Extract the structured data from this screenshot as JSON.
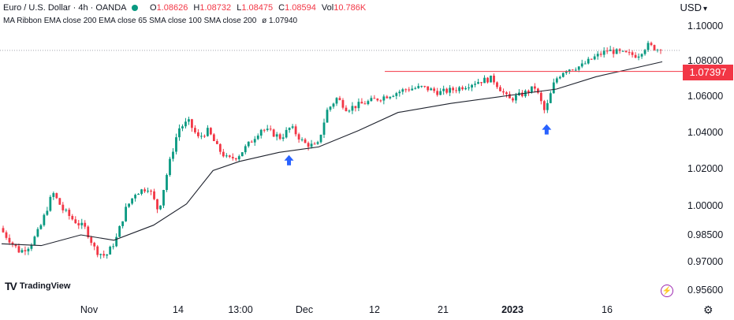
{
  "header": {
    "title": "Euro / U.S. Dollar · 4h · OANDA",
    "ohlc": {
      "O": "1.08626",
      "H": "1.08732",
      "L": "1.08475",
      "C": "1.08594",
      "Vol": "10.786K"
    },
    "indicator_label": "MA Ribbon EMA close 200 EMA close 65 SMA close 100 SMA close 200",
    "indicator_value": "1.07940",
    "currency": "USD"
  },
  "colors": {
    "up": "#089981",
    "down": "#f23645",
    "ma": "#1e222d",
    "resistance": "#f23645",
    "arrow": "#2962ff"
  },
  "chart_data": {
    "type": "candlestick",
    "y_axis": {
      "ticks": [
        1.1,
        1.08,
        1.06,
        1.04,
        1.02,
        1.0,
        0.985,
        0.97,
        0.956
      ],
      "tick_labels": [
        "1.10000",
        "1.08000",
        "1.06000",
        "1.04000",
        "1.02000",
        "1.00000",
        "0.98500",
        "0.97000",
        "0.95600"
      ],
      "range": [
        0.9545,
        1.1015
      ]
    },
    "x_axis": {
      "tick_labels": [
        "Nov",
        "14",
        "13:00",
        "Dec",
        "12",
        "21",
        "2023",
        "16"
      ],
      "tick_positions": [
        0.045,
        0.1,
        0.2,
        0.33,
        0.42,
        0.51,
        0.635,
        0.82
      ]
    },
    "price_path": [
      [
        0.0,
        0.9885
      ],
      [
        0.01,
        0.984
      ],
      [
        0.03,
        0.9755
      ],
      [
        0.045,
        0.979
      ],
      [
        0.06,
        0.988
      ],
      [
        0.08,
        1.007
      ],
      [
        0.095,
        0.998
      ],
      [
        0.11,
        0.993
      ],
      [
        0.13,
        0.988
      ],
      [
        0.145,
        0.976
      ],
      [
        0.16,
        0.973
      ],
      [
        0.175,
        0.982
      ],
      [
        0.19,
        0.998
      ],
      [
        0.205,
        1.007
      ],
      [
        0.225,
        1.01
      ],
      [
        0.24,
        0.997
      ],
      [
        0.255,
        1.021
      ],
      [
        0.27,
        1.042
      ],
      [
        0.285,
        1.046
      ],
      [
        0.3,
        1.037
      ],
      [
        0.315,
        1.041
      ],
      [
        0.33,
        1.031
      ],
      [
        0.345,
        1.025
      ],
      [
        0.36,
        1.027
      ],
      [
        0.38,
        1.035
      ],
      [
        0.395,
        1.042
      ],
      [
        0.41,
        1.04
      ],
      [
        0.425,
        1.037
      ],
      [
        0.44,
        1.043
      ],
      [
        0.46,
        1.034
      ],
      [
        0.48,
        1.032
      ],
      [
        0.495,
        1.052
      ],
      [
        0.51,
        1.059
      ],
      [
        0.525,
        1.053
      ],
      [
        0.55,
        1.056
      ],
      [
        0.575,
        1.059
      ],
      [
        0.6,
        1.062
      ],
      [
        0.615,
        1.064
      ],
      [
        0.64,
        1.065
      ],
      [
        0.665,
        1.062
      ],
      [
        0.69,
        1.064
      ],
      [
        0.72,
        1.068
      ],
      [
        0.745,
        1.07
      ],
      [
        0.77,
        1.058
      ],
      [
        0.79,
        1.061
      ],
      [
        0.81,
        1.065
      ],
      [
        0.825,
        1.051
      ],
      [
        0.84,
        1.069
      ],
      [
        0.855,
        1.075
      ],
      [
        0.88,
        1.077
      ],
      [
        0.9,
        1.082
      ],
      [
        0.92,
        1.086
      ],
      [
        0.945,
        1.084
      ],
      [
        0.965,
        1.083
      ],
      [
        0.98,
        1.089
      ],
      [
        1.0,
        1.0859
      ]
    ],
    "moving_average": [
      [
        0.0,
        0.98
      ],
      [
        0.06,
        0.979
      ],
      [
        0.12,
        0.985
      ],
      [
        0.17,
        0.982
      ],
      [
        0.23,
        0.99
      ],
      [
        0.28,
        1.001
      ],
      [
        0.32,
        1.019
      ],
      [
        0.36,
        1.024
      ],
      [
        0.42,
        1.029
      ],
      [
        0.48,
        1.032
      ],
      [
        0.54,
        1.041
      ],
      [
        0.6,
        1.051
      ],
      [
        0.68,
        1.056
      ],
      [
        0.76,
        1.06
      ],
      [
        0.84,
        1.064
      ],
      [
        0.9,
        1.071
      ],
      [
        0.96,
        1.076
      ],
      [
        1.0,
        1.0794
      ]
    ],
    "resistance": {
      "value": 1.07397,
      "label": "1.07397",
      "x_start": 0.58
    },
    "last_price": 1.08594,
    "arrows": [
      {
        "x": 0.435,
        "y": 1.0275
      },
      {
        "x": 0.825,
        "y": 1.0445
      }
    ],
    "grid": false
  },
  "branding": {
    "logo_text": "TradingView"
  }
}
